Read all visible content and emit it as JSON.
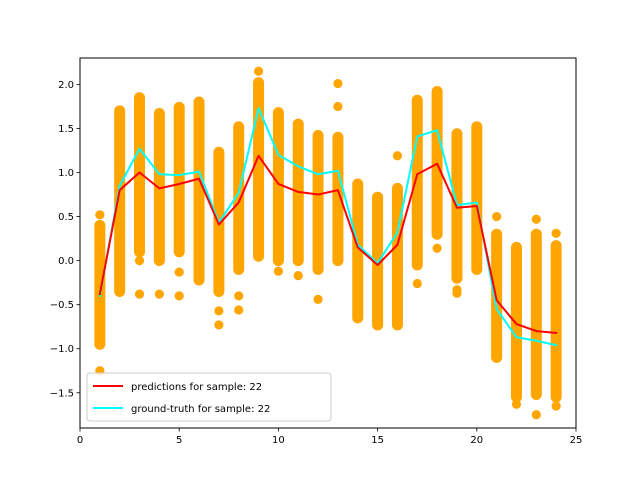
{
  "chart_data": {
    "type": "line",
    "title": "",
    "xlabel": "",
    "ylabel": "",
    "xlim": [
      0,
      25
    ],
    "ylim": [
      -1.9,
      2.3
    ],
    "xticks": [
      0,
      5,
      10,
      15,
      20,
      25
    ],
    "yticks": [
      -1.5,
      -1.0,
      -0.5,
      0.0,
      0.5,
      1.0,
      1.5,
      2.0
    ],
    "xtick_labels": [
      "0",
      "5",
      "10",
      "15",
      "20",
      "25"
    ],
    "ytick_labels": [
      "−1.5",
      "−1.0",
      "−0.5",
      "0.0",
      "0.5",
      "1.0",
      "1.5",
      "2.0"
    ],
    "grid": false,
    "legend_position": "lower-left",
    "x": [
      1,
      2,
      3,
      4,
      5,
      6,
      7,
      8,
      9,
      10,
      11,
      12,
      13,
      14,
      15,
      16,
      17,
      18,
      19,
      20,
      21,
      22,
      23,
      24
    ],
    "series": [
      {
        "name": "predictions for sample: 22",
        "color": "#ff0000",
        "values": [
          -0.38,
          0.8,
          1.0,
          0.82,
          0.87,
          0.93,
          0.41,
          0.66,
          1.19,
          0.87,
          0.78,
          0.75,
          0.8,
          0.15,
          -0.05,
          0.18,
          0.98,
          1.1,
          0.6,
          0.62,
          -0.45,
          -0.72,
          -0.8,
          -0.82
        ]
      },
      {
        "name": "ground-truth for sample: 22",
        "color": "#00ffff",
        "values": [
          -0.4,
          0.85,
          1.27,
          0.98,
          0.97,
          1.01,
          0.43,
          0.77,
          1.73,
          1.2,
          1.07,
          0.98,
          1.02,
          0.18,
          -0.03,
          0.32,
          1.41,
          1.48,
          0.63,
          0.66,
          -0.55,
          -0.87,
          -0.91,
          -0.96
        ]
      }
    ],
    "scatter": {
      "color": "#ffa500",
      "columns": [
        {
          "x": 1,
          "bulk": [
            -0.95,
            0.4
          ],
          "outliers": [
            0.52,
            -1.25
          ]
        },
        {
          "x": 2,
          "bulk": [
            -0.35,
            1.7
          ],
          "outliers": []
        },
        {
          "x": 3,
          "bulk": [
            0.1,
            1.85
          ],
          "outliers": [
            -0.38,
            0.0
          ]
        },
        {
          "x": 4,
          "bulk": [
            0.0,
            1.67
          ],
          "outliers": [
            -0.38
          ]
        },
        {
          "x": 5,
          "bulk": [
            0.1,
            1.74
          ],
          "outliers": [
            -0.13,
            -0.4
          ]
        },
        {
          "x": 6,
          "bulk": [
            -0.22,
            1.8
          ],
          "outliers": []
        },
        {
          "x": 7,
          "bulk": [
            -0.35,
            1.23
          ],
          "outliers": [
            -0.57,
            -0.73
          ]
        },
        {
          "x": 8,
          "bulk": [
            -0.1,
            1.52
          ],
          "outliers": [
            -0.4,
            -0.56
          ]
        },
        {
          "x": 9,
          "bulk": [
            0.05,
            2.02
          ],
          "outliers": [
            2.15
          ]
        },
        {
          "x": 10,
          "bulk": [
            0.0,
            1.68
          ],
          "outliers": [
            -0.12
          ]
        },
        {
          "x": 11,
          "bulk": [
            0.0,
            1.55
          ],
          "outliers": [
            -0.17
          ]
        },
        {
          "x": 12,
          "bulk": [
            -0.1,
            1.42
          ],
          "outliers": [
            -0.44
          ]
        },
        {
          "x": 13,
          "bulk": [
            0.0,
            1.4
          ],
          "outliers": [
            1.75,
            2.01
          ]
        },
        {
          "x": 14,
          "bulk": [
            -0.65,
            0.87
          ],
          "outliers": []
        },
        {
          "x": 15,
          "bulk": [
            -0.73,
            0.72
          ],
          "outliers": []
        },
        {
          "x": 16,
          "bulk": [
            -0.73,
            0.82
          ],
          "outliers": [
            1.19
          ]
        },
        {
          "x": 17,
          "bulk": [
            -0.05,
            1.82
          ],
          "outliers": [
            -0.26
          ]
        },
        {
          "x": 18,
          "bulk": [
            0.3,
            1.92
          ],
          "outliers": [
            0.14
          ]
        },
        {
          "x": 19,
          "bulk": [
            -0.2,
            1.44
          ],
          "outliers": [
            -0.33,
            -0.37
          ]
        },
        {
          "x": 20,
          "bulk": [
            -0.1,
            1.52
          ],
          "outliers": []
        },
        {
          "x": 21,
          "bulk": [
            -1.1,
            0.3
          ],
          "outliers": [
            0.5
          ]
        },
        {
          "x": 22,
          "bulk": [
            -1.55,
            0.15
          ],
          "outliers": [
            -1.63
          ]
        },
        {
          "x": 23,
          "bulk": [
            -1.52,
            0.3
          ],
          "outliers": [
            0.47,
            -1.75
          ]
        },
        {
          "x": 24,
          "bulk": [
            -1.55,
            0.17
          ],
          "outliers": [
            0.31,
            -1.65
          ]
        }
      ]
    }
  }
}
